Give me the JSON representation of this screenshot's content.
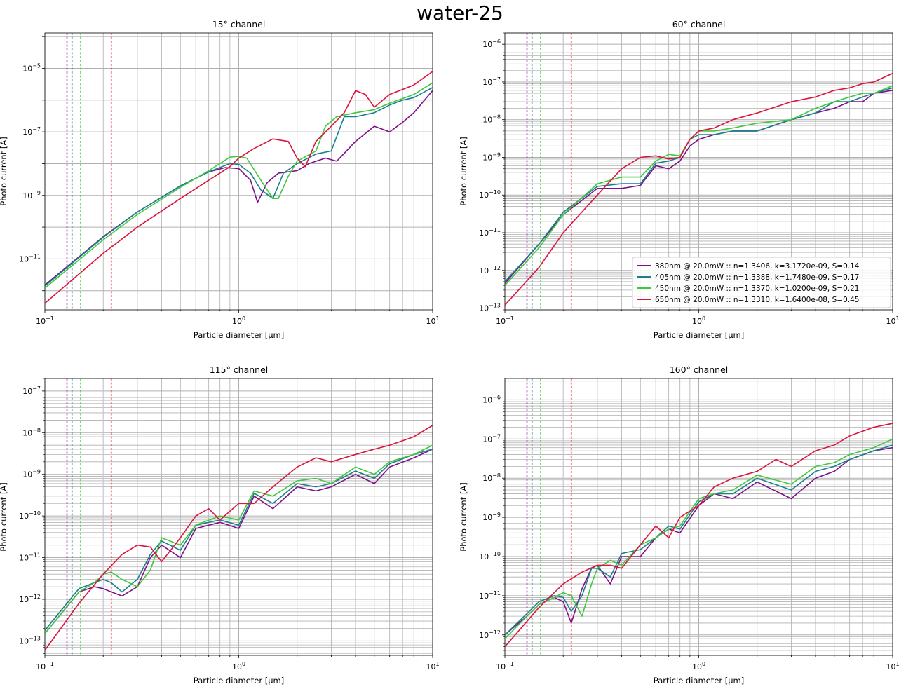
{
  "figure": {
    "title": "water-25"
  },
  "colors": {
    "380nm": "#7f0f8a",
    "405nm": "#17808a",
    "450nm": "#3ec83c",
    "650nm": "#dc143c",
    "grid": "#b0b0b0",
    "extra_vline": "#c8c8d8"
  },
  "chart_data": [
    {
      "type": "line",
      "title": "15° channel",
      "xlabel": "Particle diameter [µm]",
      "ylabel": "Photo current [A]",
      "xscale": "log",
      "yscale": "log",
      "xlim": [
        0.1,
        10
      ],
      "ylim": [
        2.5e-13,
        0.00013
      ],
      "x_ticks": [
        "10^-1",
        "10^0",
        "10^1"
      ],
      "y_ticks": [
        "10^-11",
        "10^-9",
        "10^-7",
        "10^-5"
      ],
      "grid": "major",
      "vlines_um": [
        0.13,
        0.138,
        0.153,
        0.22
      ],
      "extra_vline_um": [],
      "legend": null,
      "series": [
        {
          "name": "380nm",
          "x": [
            0.1,
            0.2,
            0.3,
            0.5,
            0.7,
            0.85,
            1.0,
            1.15,
            1.25,
            1.4,
            1.6,
            2.0,
            2.3,
            2.8,
            3.2,
            4.0,
            5.0,
            6.0,
            7.0,
            8.0,
            10.0
          ],
          "y": [
            1.5e-12,
            5e-11,
            3e-10,
            2e-09,
            5.5e-09,
            7.5e-09,
            7e-09,
            3e-09,
            6e-10,
            2.5e-09,
            5e-09,
            6e-09,
            1e-08,
            1.5e-08,
            1.2e-08,
            5e-08,
            1.5e-07,
            1e-07,
            2e-07,
            4e-07,
            2e-06
          ]
        },
        {
          "name": "405nm",
          "x": [
            0.1,
            0.2,
            0.3,
            0.5,
            0.7,
            0.9,
            1.0,
            1.15,
            1.3,
            1.5,
            1.7,
            2.0,
            2.5,
            3.0,
            3.5,
            4.0,
            5.0,
            6.0,
            7.0,
            8.0,
            10.0
          ],
          "y": [
            1.4e-12,
            4.8e-11,
            3e-10,
            2e-09,
            5.5e-09,
            1e-08,
            9.5e-09,
            5e-09,
            1.5e-09,
            8e-10,
            5e-09,
            1e-08,
            2e-08,
            2.5e-08,
            3e-07,
            3e-07,
            4e-07,
            7e-07,
            1e-06,
            1.2e-06,
            2.5e-06
          ]
        },
        {
          "name": "450nm",
          "x": [
            0.1,
            0.2,
            0.3,
            0.5,
            0.7,
            0.9,
            1.0,
            1.1,
            1.3,
            1.5,
            1.6,
            1.8,
            2.0,
            2.5,
            2.8,
            3.2,
            4.0,
            5.0,
            6.0,
            8.0,
            10.0
          ],
          "y": [
            1.2e-12,
            4e-11,
            2.5e-10,
            1.8e-09,
            6e-09,
            1.6e-08,
            1.7e-08,
            1.5e-08,
            3e-09,
            8e-10,
            8e-10,
            4e-09,
            1.2e-08,
            2.5e-08,
            1.5e-07,
            3e-07,
            4e-07,
            5e-07,
            8e-07,
            1.5e-06,
            3.5e-06
          ]
        },
        {
          "name": "650nm",
          "x": [
            0.1,
            0.2,
            0.3,
            0.5,
            0.7,
            0.9,
            1.0,
            1.2,
            1.5,
            1.8,
            2.0,
            2.2,
            2.5,
            3.0,
            3.5,
            4.0,
            4.5,
            5.0,
            6.0,
            8.0,
            10.0
          ],
          "y": [
            4e-13,
            1.5e-11,
            1e-10,
            8e-10,
            3e-09,
            8e-09,
            1.5e-08,
            3e-08,
            6e-08,
            5e-08,
            1.5e-08,
            8e-09,
            5e-08,
            1.5e-07,
            4e-07,
            2e-06,
            1.5e-06,
            6e-07,
            1.5e-06,
            3e-06,
            8e-06
          ]
        }
      ]
    },
    {
      "type": "line",
      "title": "60° channel",
      "xlabel": "Particle diameter [µm]",
      "ylabel": "Photo current [A]",
      "xscale": "log",
      "yscale": "log",
      "xlim": [
        0.1,
        10
      ],
      "ylim": [
        9e-14,
        2e-06
      ],
      "x_ticks": [
        "10^-1",
        "10^0",
        "10^1"
      ],
      "y_ticks": [
        "10^-13",
        "10^-12",
        "10^-11",
        "10^-10",
        "10^-9",
        "10^-8",
        "10^-7",
        "10^-6"
      ],
      "grid": "both",
      "vlines_um": [
        0.13,
        0.138,
        0.153,
        0.22
      ],
      "extra_vline_um": [
        0.2
      ],
      "legend": {
        "location": "lower right",
        "entries": [
          "380nm @ 20.0mW :: n=1.3406, k=3.1720e-09, S=0.14",
          "405nm @ 20.0mW :: n=1.3388, k=1.7480e-09, S=0.17",
          "450nm @ 20.0mW :: n=1.3370, k=1.0200e-09, S=0.21",
          "650nm @ 20.0mW :: n=1.3310, k=1.6400e-08, S=0.45"
        ]
      },
      "series": [
        {
          "name": "380nm",
          "x": [
            0.1,
            0.15,
            0.2,
            0.3,
            0.4,
            0.5,
            0.6,
            0.7,
            0.8,
            0.9,
            1.0,
            1.2,
            1.5,
            2.0,
            3.0,
            4.0,
            5.0,
            6.0,
            7.0,
            8.0,
            10.0
          ],
          "y": [
            4.5e-13,
            5e-12,
            3e-11,
            1.5e-10,
            1.5e-10,
            1.8e-10,
            6e-10,
            5e-10,
            8e-10,
            2e-09,
            3e-09,
            4e-09,
            5e-09,
            5e-09,
            1e-08,
            1.5e-08,
            2e-08,
            3e-08,
            3e-08,
            5e-08,
            6e-08
          ]
        },
        {
          "name": "405nm",
          "x": [
            0.1,
            0.15,
            0.2,
            0.3,
            0.4,
            0.5,
            0.6,
            0.7,
            0.8,
            0.9,
            1.0,
            1.2,
            1.5,
            2.0,
            3.0,
            4.0,
            5.0,
            6.0,
            7.0,
            8.0,
            10.0
          ],
          "y": [
            5e-13,
            5e-12,
            3.5e-11,
            1.7e-10,
            2e-10,
            2e-10,
            7e-10,
            8e-10,
            1e-09,
            3e-09,
            4e-09,
            4e-09,
            5e-09,
            5e-09,
            1e-08,
            1.5e-08,
            3e-08,
            3e-08,
            4e-08,
            5e-08,
            7e-08
          ]
        },
        {
          "name": "450nm",
          "x": [
            0.1,
            0.15,
            0.2,
            0.3,
            0.4,
            0.5,
            0.6,
            0.7,
            0.8,
            0.9,
            1.0,
            1.2,
            1.5,
            2.0,
            3.0,
            4.0,
            5.0,
            6.0,
            7.0,
            8.0,
            10.0
          ],
          "y": [
            4e-13,
            4e-12,
            3e-11,
            2e-10,
            3e-10,
            3e-10,
            8e-10,
            1.2e-09,
            1.1e-09,
            3e-09,
            5e-09,
            5e-09,
            6e-09,
            8e-09,
            1e-08,
            2e-08,
            3e-08,
            4e-08,
            5e-08,
            5e-08,
            8e-08
          ]
        },
        {
          "name": "650nm",
          "x": [
            0.1,
            0.15,
            0.2,
            0.3,
            0.4,
            0.5,
            0.6,
            0.7,
            0.8,
            0.9,
            1.0,
            1.2,
            1.5,
            2.0,
            3.0,
            4.0,
            5.0,
            6.0,
            7.0,
            8.0,
            10.0
          ],
          "y": [
            1.2e-13,
            1.2e-12,
            1e-11,
            1e-10,
            5e-10,
            1e-09,
            1.1e-09,
            9e-10,
            1e-09,
            3e-09,
            5e-09,
            6e-09,
            1e-08,
            1.5e-08,
            3e-08,
            4e-08,
            6e-08,
            7e-08,
            9e-08,
            1e-07,
            1.7e-07
          ]
        }
      ]
    },
    {
      "type": "line",
      "title": "115° channel",
      "xlabel": "Particle diameter [µm]",
      "ylabel": "Photo current [A]",
      "xscale": "log",
      "yscale": "log",
      "xlim": [
        0.1,
        10
      ],
      "ylim": [
        4.5e-14,
        2e-07
      ],
      "x_ticks": [
        "10^-1",
        "10^0",
        "10^1"
      ],
      "y_ticks": [
        "10^-13",
        "10^-12",
        "10^-11",
        "10^-10",
        "10^-9",
        "10^-8",
        "10^-7"
      ],
      "grid": "both",
      "vlines_um": [
        0.13,
        0.138,
        0.153,
        0.22
      ],
      "extra_vline_um": [
        0.2
      ],
      "legend": null,
      "series": [
        {
          "name": "380nm",
          "x": [
            0.1,
            0.15,
            0.18,
            0.2,
            0.22,
            0.25,
            0.3,
            0.35,
            0.4,
            0.5,
            0.6,
            0.8,
            1.0,
            1.2,
            1.5,
            2.0,
            2.5,
            3.0,
            4.0,
            5.0,
            6.0,
            8.0,
            10.0
          ],
          "y": [
            1.5e-13,
            1.5e-12,
            2e-12,
            1.8e-12,
            1.5e-12,
            1.2e-12,
            2e-12,
            1e-11,
            2e-11,
            1e-11,
            5e-11,
            7e-11,
            5e-11,
            3e-10,
            1.5e-10,
            5e-10,
            4e-10,
            5e-10,
            1e-09,
            6e-10,
            1.5e-09,
            2.5e-09,
            4e-09
          ]
        },
        {
          "name": "405nm",
          "x": [
            0.1,
            0.15,
            0.18,
            0.2,
            0.22,
            0.25,
            0.3,
            0.35,
            0.4,
            0.5,
            0.6,
            0.8,
            1.0,
            1.2,
            1.5,
            2.0,
            2.5,
            3.0,
            4.0,
            5.0,
            6.0,
            8.0,
            10.0
          ],
          "y": [
            1.8e-13,
            1.8e-12,
            2.5e-12,
            3e-12,
            2.5e-12,
            1.5e-12,
            3e-12,
            1.2e-11,
            2.5e-11,
            1.5e-11,
            6e-11,
            8e-11,
            6e-11,
            3.5e-10,
            2e-10,
            6e-10,
            5e-10,
            6e-10,
            1.2e-09,
            8e-10,
            1.8e-09,
            3e-09,
            4e-09
          ]
        },
        {
          "name": "450nm",
          "x": [
            0.1,
            0.15,
            0.18,
            0.2,
            0.22,
            0.25,
            0.3,
            0.35,
            0.4,
            0.5,
            0.6,
            0.8,
            1.0,
            1.2,
            1.5,
            2.0,
            2.5,
            3.0,
            4.0,
            5.0,
            6.0,
            8.0,
            10.0
          ],
          "y": [
            1.5e-13,
            1.5e-12,
            2.5e-12,
            4e-12,
            4.5e-12,
            3e-12,
            2e-12,
            5e-12,
            3e-11,
            2e-11,
            6e-11,
            1e-10,
            8e-11,
            4e-10,
            3e-10,
            7e-10,
            8e-10,
            6e-10,
            1.5e-09,
            1e-09,
            2e-09,
            3e-09,
            5e-09
          ]
        },
        {
          "name": "650nm",
          "x": [
            0.1,
            0.15,
            0.2,
            0.25,
            0.3,
            0.35,
            0.4,
            0.5,
            0.6,
            0.7,
            0.8,
            1.0,
            1.2,
            1.5,
            2.0,
            2.5,
            3.0,
            4.0,
            5.0,
            6.0,
            8.0,
            10.0
          ],
          "y": [
            6e-14,
            8e-13,
            4e-12,
            1.2e-11,
            2e-11,
            1.8e-11,
            8e-12,
            3e-11,
            1e-10,
            1.5e-10,
            8e-11,
            2e-10,
            2e-10,
            5e-10,
            1.5e-09,
            2.5e-09,
            2e-09,
            3e-09,
            4e-09,
            5e-09,
            8e-09,
            1.5e-08
          ]
        }
      ]
    },
    {
      "type": "line",
      "title": "160° channel",
      "xlabel": "Particle diameter [µm]",
      "ylabel": "Photo current [A]",
      "xscale": "log",
      "yscale": "log",
      "xlim": [
        0.1,
        10
      ],
      "ylim": [
        3e-13,
        3.5e-06
      ],
      "x_ticks": [
        "10^-1",
        "10^0",
        "10^1"
      ],
      "y_ticks": [
        "10^-12",
        "10^-11",
        "10^-10",
        "10^-9",
        "10^-8",
        "10^-7",
        "10^-6"
      ],
      "grid": "both",
      "vlines_um": [
        0.13,
        0.138,
        0.153,
        0.22
      ],
      "extra_vline_um": [
        0.2
      ],
      "legend": null,
      "series": [
        {
          "name": "380nm",
          "x": [
            0.1,
            0.13,
            0.15,
            0.18,
            0.2,
            0.22,
            0.25,
            0.28,
            0.3,
            0.35,
            0.4,
            0.5,
            0.6,
            0.7,
            0.8,
            1.0,
            1.2,
            1.5,
            2.0,
            3.0,
            4.0,
            5.0,
            6.0,
            8.0,
            10.0
          ],
          "y": [
            1e-12,
            3e-12,
            6e-12,
            9e-12,
            7e-12,
            2e-12,
            1.5e-11,
            5e-11,
            6e-11,
            2e-11,
            1e-10,
            1e-10,
            3e-10,
            5e-10,
            4e-10,
            2e-09,
            4e-09,
            3e-09,
            8e-09,
            3e-09,
            1e-08,
            1.5e-08,
            3e-08,
            5e-08,
            6e-08
          ]
        },
        {
          "name": "405nm",
          "x": [
            0.1,
            0.13,
            0.15,
            0.18,
            0.2,
            0.22,
            0.25,
            0.28,
            0.3,
            0.35,
            0.4,
            0.5,
            0.6,
            0.7,
            0.8,
            1.0,
            1.2,
            1.5,
            2.0,
            3.0,
            4.0,
            5.0,
            6.0,
            8.0,
            10.0
          ],
          "y": [
            1e-12,
            3.5e-12,
            7e-12,
            1e-11,
            9e-12,
            4e-12,
            1e-11,
            5e-11,
            5e-11,
            3e-11,
            1.2e-10,
            1.5e-10,
            3e-10,
            6e-10,
            5e-10,
            2.5e-09,
            4e-09,
            4e-09,
            1e-08,
            5e-09,
            1.5e-08,
            2e-08,
            3e-08,
            5e-08,
            7e-08
          ]
        },
        {
          "name": "450nm",
          "x": [
            0.1,
            0.13,
            0.15,
            0.18,
            0.2,
            0.22,
            0.25,
            0.28,
            0.3,
            0.35,
            0.4,
            0.5,
            0.6,
            0.7,
            0.8,
            1.0,
            1.2,
            1.5,
            2.0,
            3.0,
            4.0,
            5.0,
            6.0,
            8.0,
            10.0
          ],
          "y": [
            8e-13,
            3e-12,
            6e-12,
            9e-12,
            1.2e-11,
            1e-11,
            3e-12,
            2e-11,
            5e-11,
            8e-11,
            6e-11,
            2e-10,
            3e-10,
            5e-10,
            6e-10,
            3e-09,
            4e-09,
            5e-09,
            1.2e-08,
            7e-09,
            2e-08,
            2.5e-08,
            4e-08,
            6e-08,
            1e-07
          ]
        },
        {
          "name": "650nm",
          "x": [
            0.1,
            0.15,
            0.2,
            0.25,
            0.3,
            0.35,
            0.4,
            0.5,
            0.6,
            0.7,
            0.8,
            1.0,
            1.2,
            1.5,
            2.0,
            2.5,
            3.0,
            4.0,
            5.0,
            6.0,
            8.0,
            10.0
          ],
          "y": [
            5e-13,
            5e-12,
            2e-11,
            4e-11,
            6e-11,
            6e-11,
            5e-11,
            2e-10,
            6e-10,
            3e-10,
            1e-09,
            2e-09,
            6e-09,
            1e-08,
            1.5e-08,
            3e-08,
            2e-08,
            5e-08,
            7e-08,
            1.2e-07,
            2e-07,
            2.5e-07
          ]
        }
      ]
    }
  ]
}
